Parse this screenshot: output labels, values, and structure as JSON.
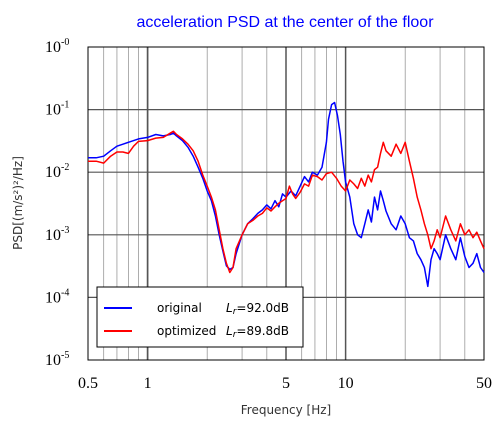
{
  "chart_data": {
    "type": "line",
    "title": "acceleration PSD at the center of the floor",
    "xlabel": "Frequency [Hz]",
    "ylabel": "PSD[(m/s²)²/Hz]",
    "xscale": "log",
    "yscale": "log",
    "xlim": [
      0.5,
      50
    ],
    "ylim": [
      1e-05,
      1
    ],
    "x_ticks": [
      {
        "value": 0.5,
        "label": "0.5"
      },
      {
        "value": 1,
        "label": "1"
      },
      {
        "value": 5,
        "label": "5"
      },
      {
        "value": 10,
        "label": "10"
      },
      {
        "value": 50,
        "label": "50"
      }
    ],
    "y_ticks": [
      {
        "value": 1,
        "base": "10",
        "exp": "-0"
      },
      {
        "value": 0.1,
        "base": "10",
        "exp": "-1"
      },
      {
        "value": 0.01,
        "base": "10",
        "exp": "-2"
      },
      {
        "value": 0.001,
        "base": "10",
        "exp": "-3"
      },
      {
        "value": 0.0001,
        "base": "10",
        "exp": "-4"
      },
      {
        "value": 1e-05,
        "base": "10",
        "exp": "-5"
      }
    ],
    "grid": true,
    "legend_position": "bottom-left",
    "series": [
      {
        "name": "original",
        "lr_symbol": "L",
        "lr_subscript": "r",
        "lr_value": "=92.0dB",
        "color": "#0000ff",
        "points": [
          [
            0.5,
            0.017
          ],
          [
            0.55,
            0.017
          ],
          [
            0.6,
            0.018
          ],
          [
            0.65,
            0.022
          ],
          [
            0.7,
            0.026
          ],
          [
            0.75,
            0.028
          ],
          [
            0.8,
            0.03
          ],
          [
            0.9,
            0.034
          ],
          [
            1.0,
            0.036
          ],
          [
            1.1,
            0.04
          ],
          [
            1.2,
            0.038
          ],
          [
            1.3,
            0.04
          ],
          [
            1.35,
            0.042
          ],
          [
            1.4,
            0.038
          ],
          [
            1.5,
            0.032
          ],
          [
            1.6,
            0.025
          ],
          [
            1.7,
            0.018
          ],
          [
            1.8,
            0.012
          ],
          [
            1.9,
            0.008
          ],
          [
            2.0,
            0.005
          ],
          [
            2.1,
            0.0035
          ],
          [
            2.2,
            0.002
          ],
          [
            2.3,
            0.001
          ],
          [
            2.4,
            0.00055
          ],
          [
            2.5,
            0.00032
          ],
          [
            2.6,
            0.00028
          ],
          [
            2.7,
            0.0003
          ],
          [
            2.8,
            0.0005
          ],
          [
            3.0,
            0.001
          ],
          [
            3.2,
            0.0015
          ],
          [
            3.4,
            0.0018
          ],
          [
            3.6,
            0.0022
          ],
          [
            3.8,
            0.0025
          ],
          [
            4.0,
            0.003
          ],
          [
            4.2,
            0.0026
          ],
          [
            4.4,
            0.0035
          ],
          [
            4.6,
            0.0028
          ],
          [
            4.8,
            0.0045
          ],
          [
            5.0,
            0.004
          ],
          [
            5.3,
            0.005
          ],
          [
            5.6,
            0.0042
          ],
          [
            5.9,
            0.006
          ],
          [
            6.2,
            0.0085
          ],
          [
            6.5,
            0.007
          ],
          [
            6.8,
            0.01
          ],
          [
            7.2,
            0.009
          ],
          [
            7.6,
            0.012
          ],
          [
            8.0,
            0.03
          ],
          [
            8.2,
            0.07
          ],
          [
            8.5,
            0.12
          ],
          [
            8.8,
            0.13
          ],
          [
            9.1,
            0.08
          ],
          [
            9.4,
            0.04
          ],
          [
            9.7,
            0.015
          ],
          [
            10.0,
            0.007
          ],
          [
            10.5,
            0.004
          ],
          [
            11.0,
            0.0015
          ],
          [
            11.5,
            0.001
          ],
          [
            12.0,
            0.0009
          ],
          [
            12.5,
            0.0015
          ],
          [
            13.0,
            0.0025
          ],
          [
            13.5,
            0.0016
          ],
          [
            14.0,
            0.004
          ],
          [
            14.5,
            0.0025
          ],
          [
            15.0,
            0.005
          ],
          [
            15.5,
            0.0035
          ],
          [
            16.0,
            0.0024
          ],
          [
            17.0,
            0.0015
          ],
          [
            18.0,
            0.0012
          ],
          [
            19.0,
            0.002
          ],
          [
            20.0,
            0.0015
          ],
          [
            21.0,
            0.0009
          ],
          [
            22.0,
            0.0008
          ],
          [
            23.0,
            0.0005
          ],
          [
            24.0,
            0.0004
          ],
          [
            25.0,
            0.0003
          ],
          [
            26.0,
            0.00015
          ],
          [
            27.0,
            0.0004
          ],
          [
            28.0,
            0.0006
          ],
          [
            29.0,
            0.0005
          ],
          [
            30.0,
            0.0004
          ],
          [
            32.0,
            0.001
          ],
          [
            34.0,
            0.0006
          ],
          [
            36.0,
            0.0004
          ],
          [
            38.0,
            0.0009
          ],
          [
            40.0,
            0.00045
          ],
          [
            42.0,
            0.0003
          ],
          [
            44.0,
            0.00035
          ],
          [
            46.0,
            0.0005
          ],
          [
            48.0,
            0.0003
          ],
          [
            50.0,
            0.00025
          ]
        ]
      },
      {
        "name": "optimized",
        "lr_symbol": "L",
        "lr_subscript": "r",
        "lr_value": "=89.8dB",
        "color": "#ff0000",
        "points": [
          [
            0.5,
            0.015
          ],
          [
            0.55,
            0.015
          ],
          [
            0.6,
            0.014
          ],
          [
            0.65,
            0.018
          ],
          [
            0.7,
            0.021
          ],
          [
            0.75,
            0.021
          ],
          [
            0.8,
            0.02
          ],
          [
            0.85,
            0.026
          ],
          [
            0.9,
            0.031
          ],
          [
            1.0,
            0.032
          ],
          [
            1.1,
            0.035
          ],
          [
            1.2,
            0.036
          ],
          [
            1.3,
            0.042
          ],
          [
            1.35,
            0.045
          ],
          [
            1.4,
            0.04
          ],
          [
            1.5,
            0.034
          ],
          [
            1.6,
            0.028
          ],
          [
            1.7,
            0.022
          ],
          [
            1.8,
            0.015
          ],
          [
            1.9,
            0.009
          ],
          [
            2.0,
            0.006
          ],
          [
            2.1,
            0.004
          ],
          [
            2.2,
            0.0025
          ],
          [
            2.3,
            0.0012
          ],
          [
            2.4,
            0.0006
          ],
          [
            2.5,
            0.00035
          ],
          [
            2.6,
            0.00025
          ],
          [
            2.7,
            0.0003
          ],
          [
            2.8,
            0.0006
          ],
          [
            3.0,
            0.001
          ],
          [
            3.2,
            0.0015
          ],
          [
            3.4,
            0.0017
          ],
          [
            3.6,
            0.002
          ],
          [
            3.8,
            0.0022
          ],
          [
            4.0,
            0.0027
          ],
          [
            4.2,
            0.0024
          ],
          [
            4.4,
            0.0028
          ],
          [
            4.6,
            0.0032
          ],
          [
            4.8,
            0.0035
          ],
          [
            5.0,
            0.0038
          ],
          [
            5.2,
            0.006
          ],
          [
            5.4,
            0.0045
          ],
          [
            5.6,
            0.0038
          ],
          [
            5.9,
            0.0048
          ],
          [
            6.2,
            0.0065
          ],
          [
            6.5,
            0.006
          ],
          [
            6.8,
            0.009
          ],
          [
            7.2,
            0.0085
          ],
          [
            7.6,
            0.0075
          ],
          [
            8.0,
            0.0095
          ],
          [
            8.5,
            0.01
          ],
          [
            9.0,
            0.008
          ],
          [
            9.5,
            0.006
          ],
          [
            10.0,
            0.005
          ],
          [
            10.5,
            0.0075
          ],
          [
            11.0,
            0.0065
          ],
          [
            11.5,
            0.0055
          ],
          [
            12.0,
            0.008
          ],
          [
            12.5,
            0.006
          ],
          [
            13.0,
            0.009
          ],
          [
            13.5,
            0.007
          ],
          [
            14.0,
            0.011
          ],
          [
            14.5,
            0.012
          ],
          [
            15.0,
            0.02
          ],
          [
            15.5,
            0.03
          ],
          [
            16.0,
            0.022
          ],
          [
            17.0,
            0.018
          ],
          [
            18.0,
            0.028
          ],
          [
            19.0,
            0.02
          ],
          [
            20.0,
            0.03
          ],
          [
            21.0,
            0.015
          ],
          [
            22.0,
            0.008
          ],
          [
            23.0,
            0.004
          ],
          [
            24.0,
            0.0025
          ],
          [
            25.0,
            0.0015
          ],
          [
            26.0,
            0.001
          ],
          [
            27.0,
            0.0006
          ],
          [
            28.0,
            0.0008
          ],
          [
            29.0,
            0.0012
          ],
          [
            30.0,
            0.0009
          ],
          [
            32.0,
            0.002
          ],
          [
            34.0,
            0.0012
          ],
          [
            36.0,
            0.0008
          ],
          [
            38.0,
            0.0015
          ],
          [
            40.0,
            0.001
          ],
          [
            42.0,
            0.0012
          ],
          [
            44.0,
            0.0009
          ],
          [
            46.0,
            0.0011
          ],
          [
            48.0,
            0.0008
          ],
          [
            50.0,
            0.0006
          ]
        ]
      }
    ]
  }
}
